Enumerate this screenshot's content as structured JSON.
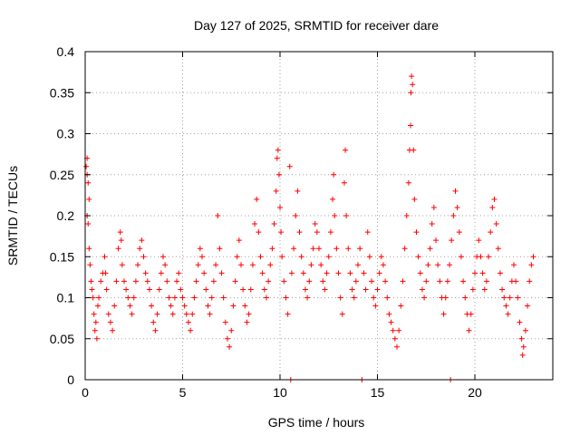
{
  "chart_data": {
    "type": "scatter",
    "title": "Day 127 of 2025, SRMTID for receiver dare",
    "xlabel": "GPS time / hours",
    "ylabel": "SRMTID / TECUs",
    "xlim": [
      0,
      24
    ],
    "ylim": [
      0,
      0.4
    ],
    "x_ticks": [
      0,
      5,
      10,
      15,
      20
    ],
    "x_tick_labels": [
      "0",
      "5",
      "10",
      "15",
      "20"
    ],
    "y_ticks": [
      0,
      0.05,
      0.1,
      0.15,
      0.2,
      0.25,
      0.3,
      0.35,
      0.4
    ],
    "y_tick_labels": [
      "0",
      "0.05",
      "0.1",
      "0.15",
      "0.2",
      "0.25",
      "0.3",
      "0.35",
      "0.4"
    ],
    "grid": true,
    "marker": "plus",
    "series_color": "#ff0000",
    "series": [
      {
        "name": "SRMTID",
        "points": [
          [
            0.05,
            0.26
          ],
          [
            0.1,
            0.27
          ],
          [
            0.1,
            0.25
          ],
          [
            0.15,
            0.24
          ],
          [
            0.2,
            0.22
          ],
          [
            0.15,
            0.19
          ],
          [
            0.1,
            0.2
          ],
          [
            0.2,
            0.16
          ],
          [
            0.25,
            0.14
          ],
          [
            0.3,
            0.12
          ],
          [
            0.35,
            0.11
          ],
          [
            0.4,
            0.1
          ],
          [
            0.45,
            0.08
          ],
          [
            0.5,
            0.06
          ],
          [
            0.55,
            0.07
          ],
          [
            0.6,
            0.05
          ],
          [
            0.65,
            0.09
          ],
          [
            0.7,
            0.1
          ],
          [
            0.8,
            0.12
          ],
          [
            0.9,
            0.13
          ],
          [
            1.0,
            0.15
          ],
          [
            1.05,
            0.13
          ],
          [
            1.1,
            0.11
          ],
          [
            1.2,
            0.08
          ],
          [
            1.3,
            0.07
          ],
          [
            1.4,
            0.06
          ],
          [
            1.5,
            0.09
          ],
          [
            1.6,
            0.12
          ],
          [
            1.7,
            0.16
          ],
          [
            1.8,
            0.18
          ],
          [
            1.85,
            0.17
          ],
          [
            1.9,
            0.14
          ],
          [
            2.0,
            0.12
          ],
          [
            2.1,
            0.11
          ],
          [
            2.2,
            0.1
          ],
          [
            2.3,
            0.09
          ],
          [
            2.4,
            0.08
          ],
          [
            2.5,
            0.1
          ],
          [
            2.6,
            0.12
          ],
          [
            2.7,
            0.14
          ],
          [
            2.8,
            0.16
          ],
          [
            2.9,
            0.17
          ],
          [
            3.0,
            0.15
          ],
          [
            3.1,
            0.13
          ],
          [
            3.2,
            0.12
          ],
          [
            3.3,
            0.11
          ],
          [
            3.4,
            0.09
          ],
          [
            3.5,
            0.07
          ],
          [
            3.6,
            0.06
          ],
          [
            3.7,
            0.08
          ],
          [
            3.8,
            0.11
          ],
          [
            3.9,
            0.13
          ],
          [
            4.0,
            0.15
          ],
          [
            4.1,
            0.14
          ],
          [
            4.2,
            0.12
          ],
          [
            4.3,
            0.1
          ],
          [
            4.4,
            0.09
          ],
          [
            4.5,
            0.08
          ],
          [
            4.6,
            0.1
          ],
          [
            4.7,
            0.12
          ],
          [
            4.8,
            0.13
          ],
          [
            4.9,
            0.11
          ],
          [
            5.0,
            0.1
          ],
          [
            5.1,
            0.09
          ],
          [
            5.2,
            0.08
          ],
          [
            5.3,
            0.07
          ],
          [
            5.4,
            0.06
          ],
          [
            5.5,
            0.08
          ],
          [
            5.6,
            0.1
          ],
          [
            5.7,
            0.12
          ],
          [
            5.8,
            0.14
          ],
          [
            5.9,
            0.16
          ],
          [
            6.0,
            0.15
          ],
          [
            6.1,
            0.13
          ],
          [
            6.2,
            0.11
          ],
          [
            6.3,
            0.09
          ],
          [
            6.4,
            0.08
          ],
          [
            6.5,
            0.1
          ],
          [
            6.6,
            0.12
          ],
          [
            6.7,
            0.14
          ],
          [
            6.8,
            0.2
          ],
          [
            6.9,
            0.16
          ],
          [
            7.0,
            0.13
          ],
          [
            7.1,
            0.1
          ],
          [
            7.2,
            0.07
          ],
          [
            7.3,
            0.05
          ],
          [
            7.4,
            0.04
          ],
          [
            7.5,
            0.06
          ],
          [
            7.6,
            0.09
          ],
          [
            7.7,
            0.12
          ],
          [
            7.8,
            0.15
          ],
          [
            7.9,
            0.17
          ],
          [
            8.0,
            0.14
          ],
          [
            8.1,
            0.11
          ],
          [
            8.2,
            0.09
          ],
          [
            8.3,
            0.07
          ],
          [
            8.4,
            0.08
          ],
          [
            8.5,
            0.11
          ],
          [
            8.6,
            0.14
          ],
          [
            8.7,
            0.19
          ],
          [
            8.8,
            0.22
          ],
          [
            8.9,
            0.18
          ],
          [
            9.0,
            0.15
          ],
          [
            9.1,
            0.13
          ],
          [
            9.2,
            0.11
          ],
          [
            9.3,
            0.1
          ],
          [
            9.4,
            0.12
          ],
          [
            9.5,
            0.14
          ],
          [
            9.6,
            0.16
          ],
          [
            9.7,
            0.19
          ],
          [
            9.8,
            0.23
          ],
          [
            9.85,
            0.27
          ],
          [
            9.9,
            0.28
          ],
          [
            9.95,
            0.25
          ],
          [
            10.0,
            0.21
          ],
          [
            10.05,
            0.18
          ],
          [
            10.1,
            0.15
          ],
          [
            10.2,
            0.12
          ],
          [
            10.3,
            0.1
          ],
          [
            10.4,
            0.08
          ],
          [
            10.5,
            0.26
          ],
          [
            10.55,
            0.0
          ],
          [
            10.6,
            0.13
          ],
          [
            10.7,
            0.16
          ],
          [
            10.8,
            0.2
          ],
          [
            10.9,
            0.23
          ],
          [
            11.0,
            0.18
          ],
          [
            11.1,
            0.15
          ],
          [
            11.2,
            0.13
          ],
          [
            11.3,
            0.11
          ],
          [
            11.4,
            0.1
          ],
          [
            11.5,
            0.12
          ],
          [
            11.6,
            0.14
          ],
          [
            11.7,
            0.16
          ],
          [
            11.8,
            0.19
          ],
          [
            11.9,
            0.18
          ],
          [
            12.0,
            0.16
          ],
          [
            12.1,
            0.14
          ],
          [
            12.2,
            0.12
          ],
          [
            12.3,
            0.11
          ],
          [
            12.4,
            0.13
          ],
          [
            12.5,
            0.15
          ],
          [
            12.6,
            0.18
          ],
          [
            12.7,
            0.22
          ],
          [
            12.75,
            0.25
          ],
          [
            12.8,
            0.2
          ],
          [
            12.9,
            0.16
          ],
          [
            13.0,
            0.13
          ],
          [
            13.1,
            0.1
          ],
          [
            13.2,
            0.08
          ],
          [
            13.3,
            0.24
          ],
          [
            13.35,
            0.28
          ],
          [
            13.4,
            0.2
          ],
          [
            13.5,
            0.16
          ],
          [
            13.6,
            0.13
          ],
          [
            13.7,
            0.11
          ],
          [
            13.8,
            0.1
          ],
          [
            13.9,
            0.12
          ],
          [
            14.0,
            0.14
          ],
          [
            14.1,
            0.16
          ],
          [
            14.2,
            0.0
          ],
          [
            14.3,
            0.13
          ],
          [
            14.4,
            0.11
          ],
          [
            14.5,
            0.18
          ],
          [
            14.6,
            0.15
          ],
          [
            14.7,
            0.12
          ],
          [
            14.8,
            0.1
          ],
          [
            14.9,
            0.09
          ],
          [
            15.0,
            0.11
          ],
          [
            15.1,
            0.13
          ],
          [
            15.2,
            0.15
          ],
          [
            15.3,
            0.14
          ],
          [
            15.4,
            0.12
          ],
          [
            15.5,
            0.1
          ],
          [
            15.6,
            0.08
          ],
          [
            15.7,
            0.07
          ],
          [
            15.8,
            0.06
          ],
          [
            15.9,
            0.05
          ],
          [
            16.0,
            0.04
          ],
          [
            16.1,
            0.06
          ],
          [
            16.2,
            0.09
          ],
          [
            16.3,
            0.12
          ],
          [
            16.4,
            0.16
          ],
          [
            16.5,
            0.2
          ],
          [
            16.6,
            0.24
          ],
          [
            16.65,
            0.28
          ],
          [
            16.7,
            0.31
          ],
          [
            16.72,
            0.35
          ],
          [
            16.75,
            0.37
          ],
          [
            16.8,
            0.36
          ],
          [
            16.85,
            0.28
          ],
          [
            16.9,
            0.22
          ],
          [
            17.0,
            0.18
          ],
          [
            17.1,
            0.15
          ],
          [
            17.2,
            0.13
          ],
          [
            17.3,
            0.11
          ],
          [
            17.4,
            0.1
          ],
          [
            17.5,
            0.12
          ],
          [
            17.6,
            0.14
          ],
          [
            17.7,
            0.16
          ],
          [
            17.8,
            0.19
          ],
          [
            17.9,
            0.21
          ],
          [
            18.0,
            0.17
          ],
          [
            18.1,
            0.14
          ],
          [
            18.2,
            0.12
          ],
          [
            18.3,
            0.1
          ],
          [
            18.4,
            0.08
          ],
          [
            18.5,
            0.1
          ],
          [
            18.6,
            0.12
          ],
          [
            18.7,
            0.14
          ],
          [
            18.75,
            0.0
          ],
          [
            18.8,
            0.17
          ],
          [
            18.9,
            0.2
          ],
          [
            19.0,
            0.23
          ],
          [
            19.1,
            0.21
          ],
          [
            19.2,
            0.18
          ],
          [
            19.3,
            0.15
          ],
          [
            19.4,
            0.12
          ],
          [
            19.5,
            0.1
          ],
          [
            19.6,
            0.08
          ],
          [
            19.7,
            0.06
          ],
          [
            19.8,
            0.08
          ],
          [
            19.9,
            0.11
          ],
          [
            20.0,
            0.13
          ],
          [
            20.1,
            0.15
          ],
          [
            20.2,
            0.17
          ],
          [
            20.3,
            0.15
          ],
          [
            20.4,
            0.13
          ],
          [
            20.5,
            0.11
          ],
          [
            20.6,
            0.12
          ],
          [
            20.7,
            0.15
          ],
          [
            20.8,
            0.18
          ],
          [
            20.9,
            0.21
          ],
          [
            21.0,
            0.22
          ],
          [
            21.1,
            0.19
          ],
          [
            21.2,
            0.16
          ],
          [
            21.3,
            0.13
          ],
          [
            21.4,
            0.11
          ],
          [
            21.5,
            0.1
          ],
          [
            21.6,
            0.09
          ],
          [
            21.7,
            0.08
          ],
          [
            21.8,
            0.1
          ],
          [
            21.9,
            0.12
          ],
          [
            22.0,
            0.14
          ],
          [
            22.1,
            0.12
          ],
          [
            22.2,
            0.1
          ],
          [
            22.3,
            0.07
          ],
          [
            22.4,
            0.05
          ],
          [
            22.45,
            0.03
          ],
          [
            22.5,
            0.04
          ],
          [
            22.6,
            0.06
          ],
          [
            22.7,
            0.09
          ],
          [
            22.8,
            0.12
          ],
          [
            22.9,
            0.14
          ],
          [
            23.0,
            0.15
          ]
        ]
      }
    ]
  }
}
